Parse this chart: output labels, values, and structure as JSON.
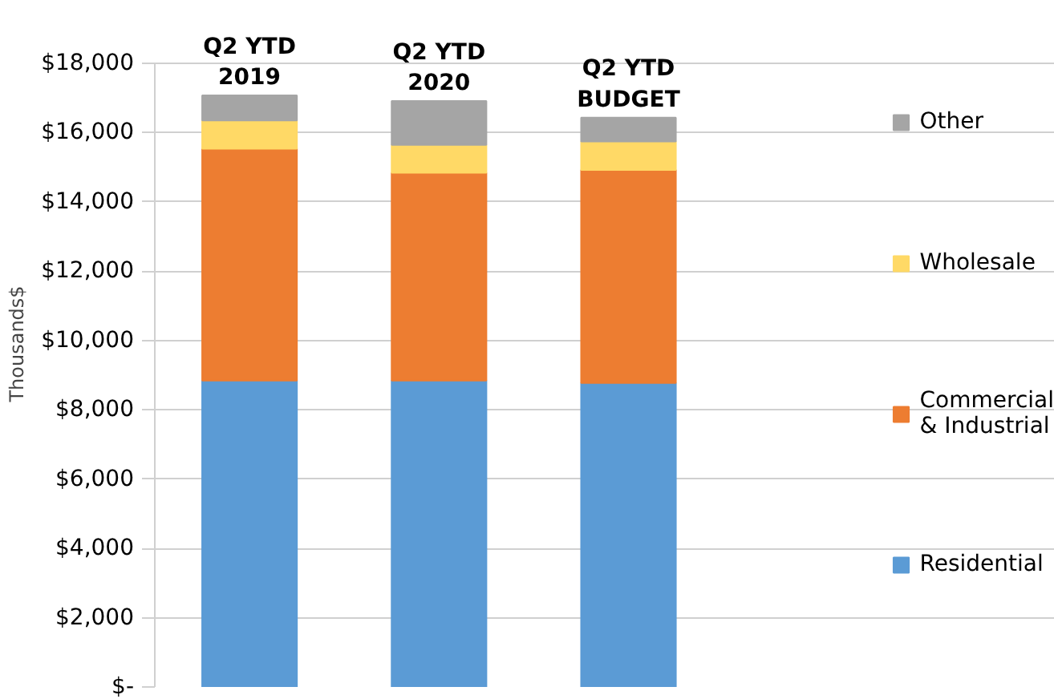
{
  "chart_data": {
    "type": "bar",
    "stacked": true,
    "ylabel": "Thousands$",
    "categories": [
      "Q2 YTD 2019",
      "Q2 YTD 2020",
      "Q2 YTD BUDGET"
    ],
    "series": [
      {
        "name": "Residential",
        "color": "#5b9bd5",
        "values": [
          8840,
          8840,
          8770
        ]
      },
      {
        "name": "Commercial & Industrial",
        "color": "#ed7d31",
        "values": [
          6690,
          6000,
          6150
        ]
      },
      {
        "name": "Wholesale",
        "color": "#ffd966",
        "values": [
          820,
          800,
          820
        ]
      },
      {
        "name": "Other",
        "color": "#a5a5a5",
        "values": [
          720,
          1270,
          690
        ]
      }
    ],
    "ylim": [
      0,
      18000
    ],
    "yticks": [
      {
        "value": 0,
        "label": "$-"
      },
      {
        "value": 2000,
        "label": "$2,000"
      },
      {
        "value": 4000,
        "label": "$4,000"
      },
      {
        "value": 6000,
        "label": "$6,000"
      },
      {
        "value": 8000,
        "label": "$8,000"
      },
      {
        "value": 10000,
        "label": "$10,000"
      },
      {
        "value": 12000,
        "label": "$12,000"
      },
      {
        "value": 14000,
        "label": "$14,000"
      },
      {
        "value": 16000,
        "label": "$16,000"
      },
      {
        "value": 18000,
        "label": "$18,000"
      }
    ],
    "grid": "y",
    "legend": "right"
  }
}
